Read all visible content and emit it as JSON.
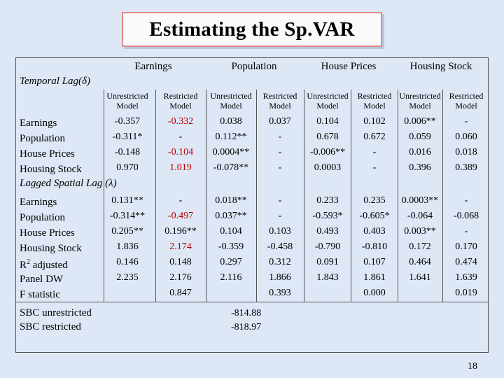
{
  "title": "Estimating the Sp.VAR",
  "groups": [
    "Earnings",
    "Population",
    "House Prices",
    "Housing Stock"
  ],
  "sections": {
    "temporal": "Temporal Lag(δ)",
    "spatial": "Lagged Spatial Lag (λ)"
  },
  "model_headers": [
    [
      "Unrestricted",
      "Model"
    ],
    [
      "Restricted",
      "Model"
    ],
    [
      "Unrestricted",
      "Model"
    ],
    [
      "Restricted",
      "Model"
    ],
    [
      "Unrestricted",
      "Model"
    ],
    [
      "Restricted",
      "Model"
    ],
    [
      "Unrestricted",
      "Model"
    ],
    [
      "Restricted",
      "Model"
    ]
  ],
  "temporal_rows": [
    {
      "label": "Earnings",
      "values": [
        "-0.357",
        "-0.332",
        "0.038",
        "0.037",
        "0.104",
        "0.102",
        "0.006**",
        "-"
      ]
    },
    {
      "label": "Population",
      "values": [
        "-0.311*",
        "-",
        "0.112**",
        "-",
        "0.678",
        "0.672",
        "0.059",
        "0.060"
      ]
    },
    {
      "label": "House Prices",
      "values": [
        "-0.148",
        "-0.104",
        "0.0004**",
        "-",
        "-0.006**",
        "-",
        "0.016",
        "0.018"
      ]
    },
    {
      "label": "Housing Stock",
      "values": [
        "0.970",
        "1.019",
        "-0.078**",
        "-",
        "0.0003",
        "-",
        "0.396",
        "0.389"
      ]
    }
  ],
  "spatial_rows": [
    {
      "label": "Earnings",
      "values": [
        "0.131**",
        "-",
        "0.018**",
        "-",
        "0.233",
        "0.235",
        "0.0003**",
        "-"
      ]
    },
    {
      "label": "Population",
      "values": [
        "-0.314**",
        "-0.497",
        "0.037**",
        "-",
        "-0.593*",
        "-0.605*",
        "-0.064",
        "-0.068"
      ]
    },
    {
      "label": "House Prices",
      "values": [
        "0.205**",
        "0.196**",
        "0.104",
        "0.103",
        "0.493",
        "0.403",
        "0.003**",
        "-"
      ]
    },
    {
      "label": "Housing Stock",
      "values": [
        "1.836",
        "2.174",
        "-0.359",
        "-0.458",
        "-0.790",
        "-0.810",
        "0.172",
        "0.170"
      ]
    }
  ],
  "stats_rows": [
    {
      "label": "R² adjusted",
      "values": [
        "0.146",
        "0.148",
        "0.297",
        "0.312",
        "0.091",
        "0.107",
        "0.464",
        "0.474"
      ]
    },
    {
      "label": "Panel DW",
      "values": [
        "2.235",
        "2.176",
        "2.116",
        "1.866",
        "1.843",
        "1.861",
        "1.641",
        "1.639"
      ]
    },
    {
      "label": "F statistic",
      "values": [
        "",
        "0.847",
        "",
        "0.393",
        "",
        "0.000",
        "",
        "0.019"
      ]
    }
  ],
  "sbc": [
    {
      "label": "SBC unrestricted",
      "value": "-814.88"
    },
    {
      "label": "SBC restricted",
      "value": "-818.97"
    }
  ],
  "page_number": "18",
  "colors": {
    "background": "#dde7f5",
    "title_border": "#e08a8a",
    "highlight_text": "#b80000"
  }
}
